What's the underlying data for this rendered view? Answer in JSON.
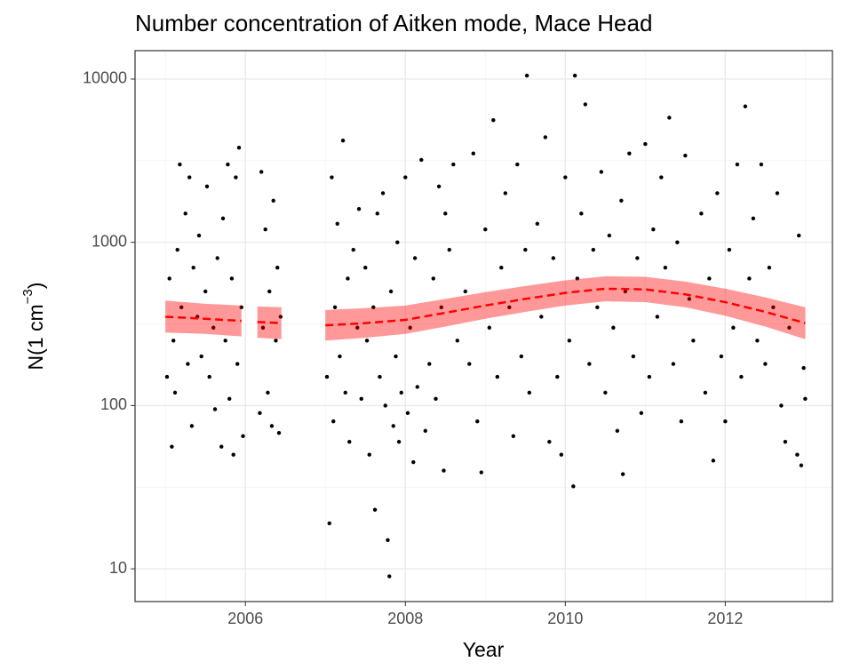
{
  "chart_data": {
    "type": "scatter",
    "title": "Number concentration of Aitken mode, Mace Head",
    "xlabel": "Year",
    "ylabel_parts": [
      "N(1 cm",
      "−3",
      ")"
    ],
    "yscale": "log",
    "grid": true,
    "xlim": [
      2004.62,
      2013.34
    ],
    "ylim": [
      6.3,
      14930
    ],
    "xticks": [
      2006,
      2008,
      2010,
      2012
    ],
    "yticks": [
      10,
      100,
      1000,
      10000
    ],
    "xminor": [
      2005,
      2007,
      2009,
      2011,
      2013
    ],
    "yminor": [
      31.6,
      316.2,
      3162.3
    ],
    "color": "#000000",
    "x": [
      2005.02,
      2005.05,
      2005.08,
      2005.1,
      2005.12,
      2005.15,
      2005.18,
      2005.2,
      2005.25,
      2005.28,
      2005.3,
      2005.33,
      2005.35,
      2005.4,
      2005.42,
      2005.45,
      2005.5,
      2005.52,
      2005.55,
      2005.6,
      2005.62,
      2005.65,
      2005.7,
      2005.72,
      2005.75,
      2005.78,
      2005.8,
      2005.83,
      2005.85,
      2005.88,
      2005.9,
      2005.92,
      2005.95,
      2005.97,
      2006.18,
      2006.2,
      2006.22,
      2006.25,
      2006.28,
      2006.3,
      2006.33,
      2006.35,
      2006.38,
      2006.4,
      2006.42,
      2006.44,
      2007.02,
      2007.05,
      2007.08,
      2007.1,
      2007.12,
      2007.15,
      2007.18,
      2007.22,
      2007.25,
      2007.28,
      2007.3,
      2007.35,
      2007.4,
      2007.42,
      2007.45,
      2007.5,
      2007.52,
      2007.55,
      2007.6,
      2007.62,
      2007.65,
      2007.68,
      2007.72,
      2007.75,
      2007.78,
      2007.8,
      2007.82,
      2007.85,
      2007.88,
      2007.9,
      2007.92,
      2007.95,
      2008.0,
      2008.03,
      2008.06,
      2008.1,
      2008.12,
      2008.15,
      2008.2,
      2008.25,
      2008.3,
      2008.35,
      2008.38,
      2008.42,
      2008.45,
      2008.48,
      2008.5,
      2008.55,
      2008.6,
      2008.65,
      2008.75,
      2008.8,
      2008.85,
      2008.9,
      2008.95,
      2009.0,
      2009.05,
      2009.1,
      2009.15,
      2009.2,
      2009.25,
      2009.3,
      2009.35,
      2009.4,
      2009.45,
      2009.5,
      2009.52,
      2009.55,
      2009.65,
      2009.7,
      2009.75,
      2009.8,
      2009.85,
      2009.9,
      2009.95,
      2010.0,
      2010.05,
      2010.1,
      2010.12,
      2010.15,
      2010.2,
      2010.25,
      2010.3,
      2010.35,
      2010.4,
      2010.45,
      2010.5,
      2010.55,
      2010.6,
      2010.65,
      2010.7,
      2010.72,
      2010.75,
      2010.8,
      2010.85,
      2010.9,
      2010.95,
      2011.0,
      2011.05,
      2011.1,
      2011.15,
      2011.2,
      2011.25,
      2011.3,
      2011.35,
      2011.4,
      2011.45,
      2011.5,
      2011.55,
      2011.6,
      2011.7,
      2011.75,
      2011.8,
      2011.85,
      2011.9,
      2011.95,
      2012.0,
      2012.05,
      2012.1,
      2012.15,
      2012.2,
      2012.25,
      2012.3,
      2012.35,
      2012.4,
      2012.45,
      2012.5,
      2012.55,
      2012.6,
      2012.65,
      2012.7,
      2012.75,
      2012.8,
      2012.9,
      2012.92,
      2012.95,
      2012.98,
      2013.0
    ],
    "values": [
      150,
      600,
      56,
      250,
      120,
      900,
      3000,
      400,
      1500,
      180,
      2500,
      75,
      700,
      350,
      1100,
      200,
      500,
      2200,
      150,
      300,
      95,
      800,
      56,
      1400,
      250,
      3000,
      110,
      600,
      50,
      2500,
      180,
      3800,
      400,
      65,
      90,
      2700,
      300,
      1200,
      120,
      500,
      75,
      1800,
      250,
      700,
      68,
      350,
      150,
      19,
      2500,
      80,
      400,
      1300,
      200,
      4200,
      120,
      600,
      60,
      900,
      300,
      1600,
      110,
      700,
      250,
      50,
      400,
      23,
      1500,
      150,
      2000,
      100,
      15,
      9,
      500,
      75,
      200,
      1000,
      60,
      120,
      2500,
      90,
      300,
      45,
      800,
      130,
      3200,
      70,
      180,
      600,
      110,
      2200,
      400,
      40,
      1500,
      900,
      3000,
      250,
      500,
      180,
      3500,
      80,
      39,
      1200,
      300,
      5600,
      150,
      700,
      2000,
      400,
      65,
      3000,
      200,
      900,
      10500,
      120,
      1300,
      350,
      4400,
      60,
      800,
      150,
      50,
      2500,
      250,
      32,
      10500,
      600,
      1500,
      7000,
      180,
      900,
      400,
      2700,
      120,
      1100,
      300,
      70,
      1800,
      38,
      500,
      3500,
      200,
      800,
      90,
      4000,
      150,
      1200,
      350,
      2500,
      700,
      5800,
      180,
      1000,
      80,
      3400,
      450,
      250,
      1500,
      120,
      600,
      46,
      2000,
      200,
      80,
      900,
      300,
      3000,
      150,
      6800,
      600,
      1400,
      250,
      3000,
      180,
      700,
      400,
      2000,
      100,
      60,
      300,
      50,
      1100,
      43,
      170,
      110
    ],
    "trend": {
      "color": "#ff0000",
      "x": [
        2005.0,
        2005.5,
        2005.95,
        2006.05,
        2006.15,
        2006.45,
        2006.8,
        2007.0,
        2007.5,
        2008.0,
        2008.5,
        2009.0,
        2009.5,
        2010.0,
        2010.5,
        2011.0,
        2011.5,
        2012.0,
        2012.5,
        2013.0
      ],
      "values": [
        350,
        340,
        330,
        null,
        325,
        320,
        null,
        310,
        320,
        335,
        370,
        410,
        450,
        490,
        520,
        515,
        480,
        430,
        375,
        320
      ],
      "lower": [
        280,
        275,
        265,
        null,
        260,
        255,
        null,
        250,
        260,
        275,
        305,
        340,
        375,
        410,
        435,
        430,
        400,
        355,
        305,
        255
      ],
      "upper": [
        440,
        420,
        410,
        null,
        405,
        400,
        null,
        385,
        395,
        410,
        450,
        495,
        540,
        585,
        620,
        615,
        575,
        520,
        460,
        400
      ]
    }
  }
}
